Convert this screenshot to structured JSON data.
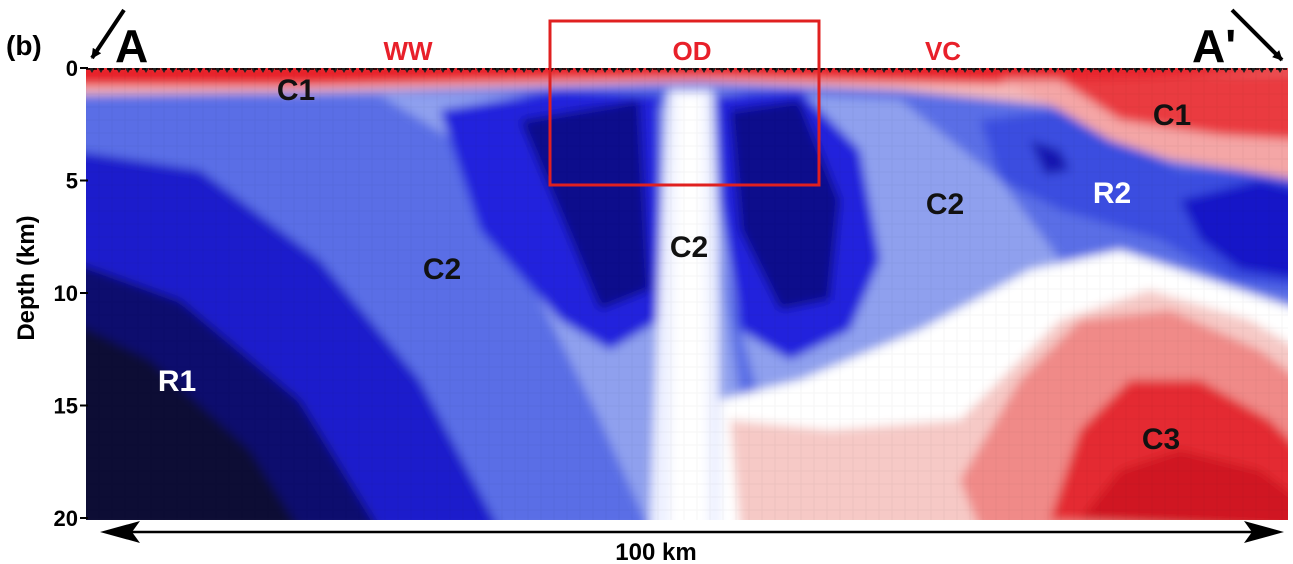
{
  "panel": {
    "label": "(b)",
    "start_label": "A",
    "end_label": "A'"
  },
  "y_axis": {
    "title": "Depth (km)",
    "ticks": [
      "0",
      "5",
      "10",
      "15",
      "20"
    ],
    "tick_values": [
      0,
      5,
      10,
      15,
      20
    ],
    "range": [
      0,
      20
    ]
  },
  "scale_bar": {
    "label": "100 km"
  },
  "site_labels": [
    {
      "text": "WW",
      "color": "#e8202a"
    },
    {
      "text": "OD",
      "color": "#e8202a"
    },
    {
      "text": "VC",
      "color": "#e8202a"
    }
  ],
  "anomaly_labels": [
    {
      "text": "C1",
      "color": "#111111"
    },
    {
      "text": "C1",
      "color": "#111111"
    },
    {
      "text": "C2",
      "color": "#111111"
    },
    {
      "text": "C2",
      "color": "#111111"
    },
    {
      "text": "C2",
      "color": "#111111"
    },
    {
      "text": "C3",
      "color": "#111111"
    },
    {
      "text": "R1",
      "color": "#ffffff"
    },
    {
      "text": "R2",
      "color": "#ffffff"
    }
  ],
  "highlight_box": {
    "color": "#e02020",
    "encloses": "OD"
  },
  "colors": {
    "conductive": "#e6192a",
    "neutral": "#ffffff",
    "resistive": "#1010cc",
    "very_resistive": "#0a0a3c"
  }
}
